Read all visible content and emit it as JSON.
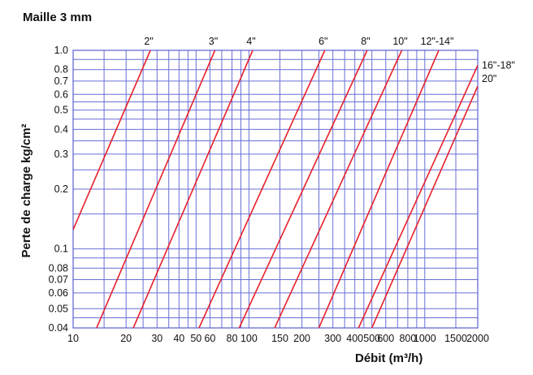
{
  "chart_data": {
    "type": "line",
    "title": "Maille 3 mm",
    "xlabel": "Débit  (m³/h)",
    "ylabel": "Perte de charge kg/cm²",
    "x_scale": "log",
    "y_scale": "log",
    "xlim": [
      10,
      2000
    ],
    "ylim": [
      0.04,
      1.0
    ],
    "grid": true,
    "x_ticks": [
      "10",
      "20",
      "30",
      "40",
      "50",
      "60",
      "80",
      "100",
      "150",
      "200",
      "300",
      "400",
      "500",
      "600",
      "800",
      "1000",
      "1500",
      "2000"
    ],
    "x_tick_values": [
      10,
      20,
      30,
      40,
      50,
      60,
      80,
      100,
      150,
      200,
      300,
      400,
      500,
      600,
      800,
      1000,
      1500,
      2000
    ],
    "y_ticks": [
      "1.0",
      "0.8",
      "0.7",
      "0.6",
      "0.5",
      "0.4",
      "0.3",
      "0.2",
      "0.1",
      "0.08",
      "0.07",
      "0.06",
      "0.05",
      "0.04"
    ],
    "y_tick_values": [
      1.0,
      0.8,
      0.7,
      0.6,
      0.5,
      0.4,
      0.3,
      0.2,
      0.1,
      0.08,
      0.07,
      0.06,
      0.05,
      0.04
    ],
    "line_color": "#e8202a",
    "grid_color": "#5a5fd0",
    "series": [
      {
        "name": "2\"",
        "x": [
          10,
          27.5
        ],
        "y": [
          0.125,
          1.0
        ]
      },
      {
        "name": "3\"",
        "x": [
          13.6,
          64
        ],
        "y": [
          0.04,
          1.0
        ]
      },
      {
        "name": "4\"",
        "x": [
          22,
          105
        ],
        "y": [
          0.04,
          1.0
        ]
      },
      {
        "name": "6\"",
        "x": [
          52,
          270
        ],
        "y": [
          0.04,
          1.0
        ]
      },
      {
        "name": "8\"",
        "x": [
          88,
          470
        ],
        "y": [
          0.04,
          1.0
        ]
      },
      {
        "name": "10\"",
        "x": [
          140,
          740
        ],
        "y": [
          0.04,
          1.0
        ]
      },
      {
        "name": "12\"-14\"",
        "x": [
          250,
          1200
        ],
        "y": [
          0.04,
          1.0
        ]
      },
      {
        "name": "16\"-18\"",
        "x": [
          420,
          2000
        ],
        "y": [
          0.04,
          0.84
        ]
      },
      {
        "name": "20\"",
        "x": [
          500,
          2000
        ],
        "y": [
          0.04,
          0.66
        ]
      }
    ]
  }
}
